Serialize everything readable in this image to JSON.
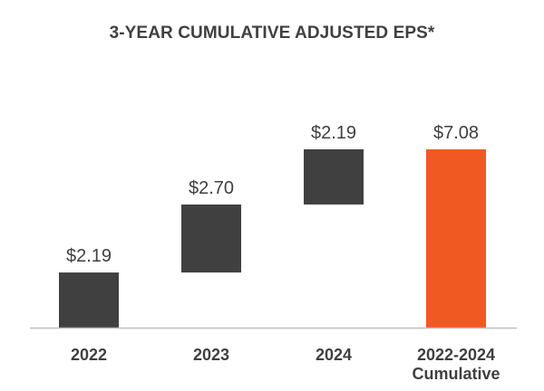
{
  "chart_data": {
    "type": "bar",
    "subtype": "waterfall",
    "title": "3-YEAR CUMULATIVE ADJUSTED EPS*",
    "xlabel": "",
    "ylabel": "",
    "categories": [
      [
        "2022"
      ],
      [
        "2023"
      ],
      [
        "2024"
      ],
      [
        "2022-2024",
        "Cumulative"
      ]
    ],
    "values": [
      2.19,
      2.7,
      2.19,
      7.08
    ],
    "value_labels": [
      "$2.19",
      "$2.70",
      "$2.19",
      "$7.08"
    ],
    "bar_kinds": [
      "increment",
      "increment",
      "increment",
      "total"
    ],
    "ylim": [
      0,
      7.08
    ],
    "grid": false,
    "legend": "none",
    "colors": {
      "increment": "#404040",
      "total": "#f05a22",
      "axis": "#bfbfbf",
      "text": "#404040"
    }
  }
}
